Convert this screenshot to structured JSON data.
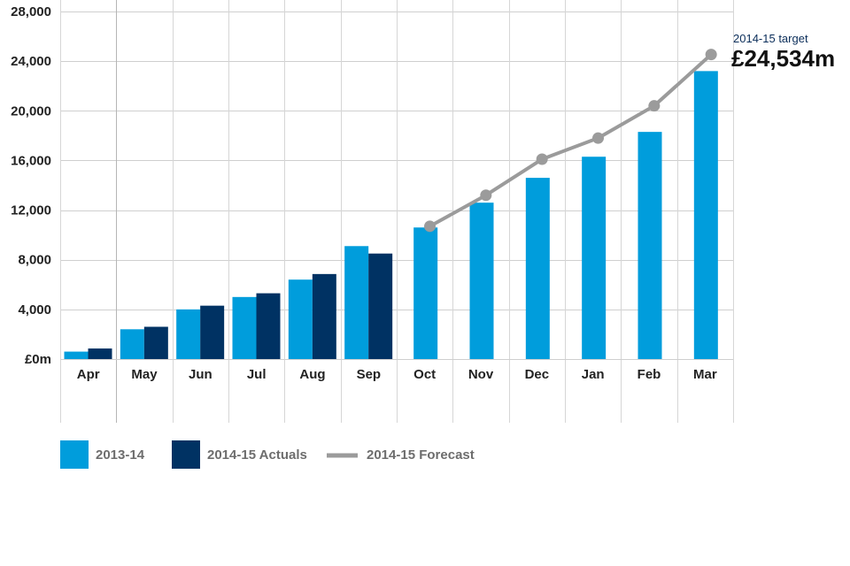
{
  "chart_data": {
    "type": "bar",
    "categories": [
      "Apr",
      "May",
      "Jun",
      "Jul",
      "Aug",
      "Sep",
      "Oct",
      "Nov",
      "Dec",
      "Jan",
      "Feb",
      "Mar"
    ],
    "y_tick_labels": [
      "£0m",
      "4,000",
      "8,000",
      "12,000",
      "16,000",
      "20,000",
      "24,000",
      "28,000"
    ],
    "y_tick_values": [
      0,
      4000,
      8000,
      12000,
      16000,
      20000,
      24000,
      28000
    ],
    "ylim": [
      0,
      28000
    ],
    "grid": true,
    "legend_position": "bottom-left",
    "series": [
      {
        "name": "2013-14",
        "kind": "bar",
        "color": "#009ddc",
        "values": [
          600,
          2400,
          4000,
          5000,
          6400,
          9100,
          10600,
          12600,
          14600,
          16300,
          18300,
          23200
        ]
      },
      {
        "name": "2014-15 Actuals",
        "kind": "bar",
        "color": "#003263",
        "values": [
          850,
          2600,
          4300,
          5300,
          6850,
          8500,
          null,
          null,
          null,
          null,
          null,
          null
        ]
      },
      {
        "name": "2014-15 Forecast",
        "kind": "line",
        "color": "#9b9b9b",
        "values": [
          null,
          null,
          null,
          null,
          null,
          null,
          10700,
          13200,
          16100,
          17800,
          20400,
          24534
        ]
      }
    ],
    "annotation": {
      "caption": "2014-15 target",
      "value": "£24,534m"
    }
  }
}
